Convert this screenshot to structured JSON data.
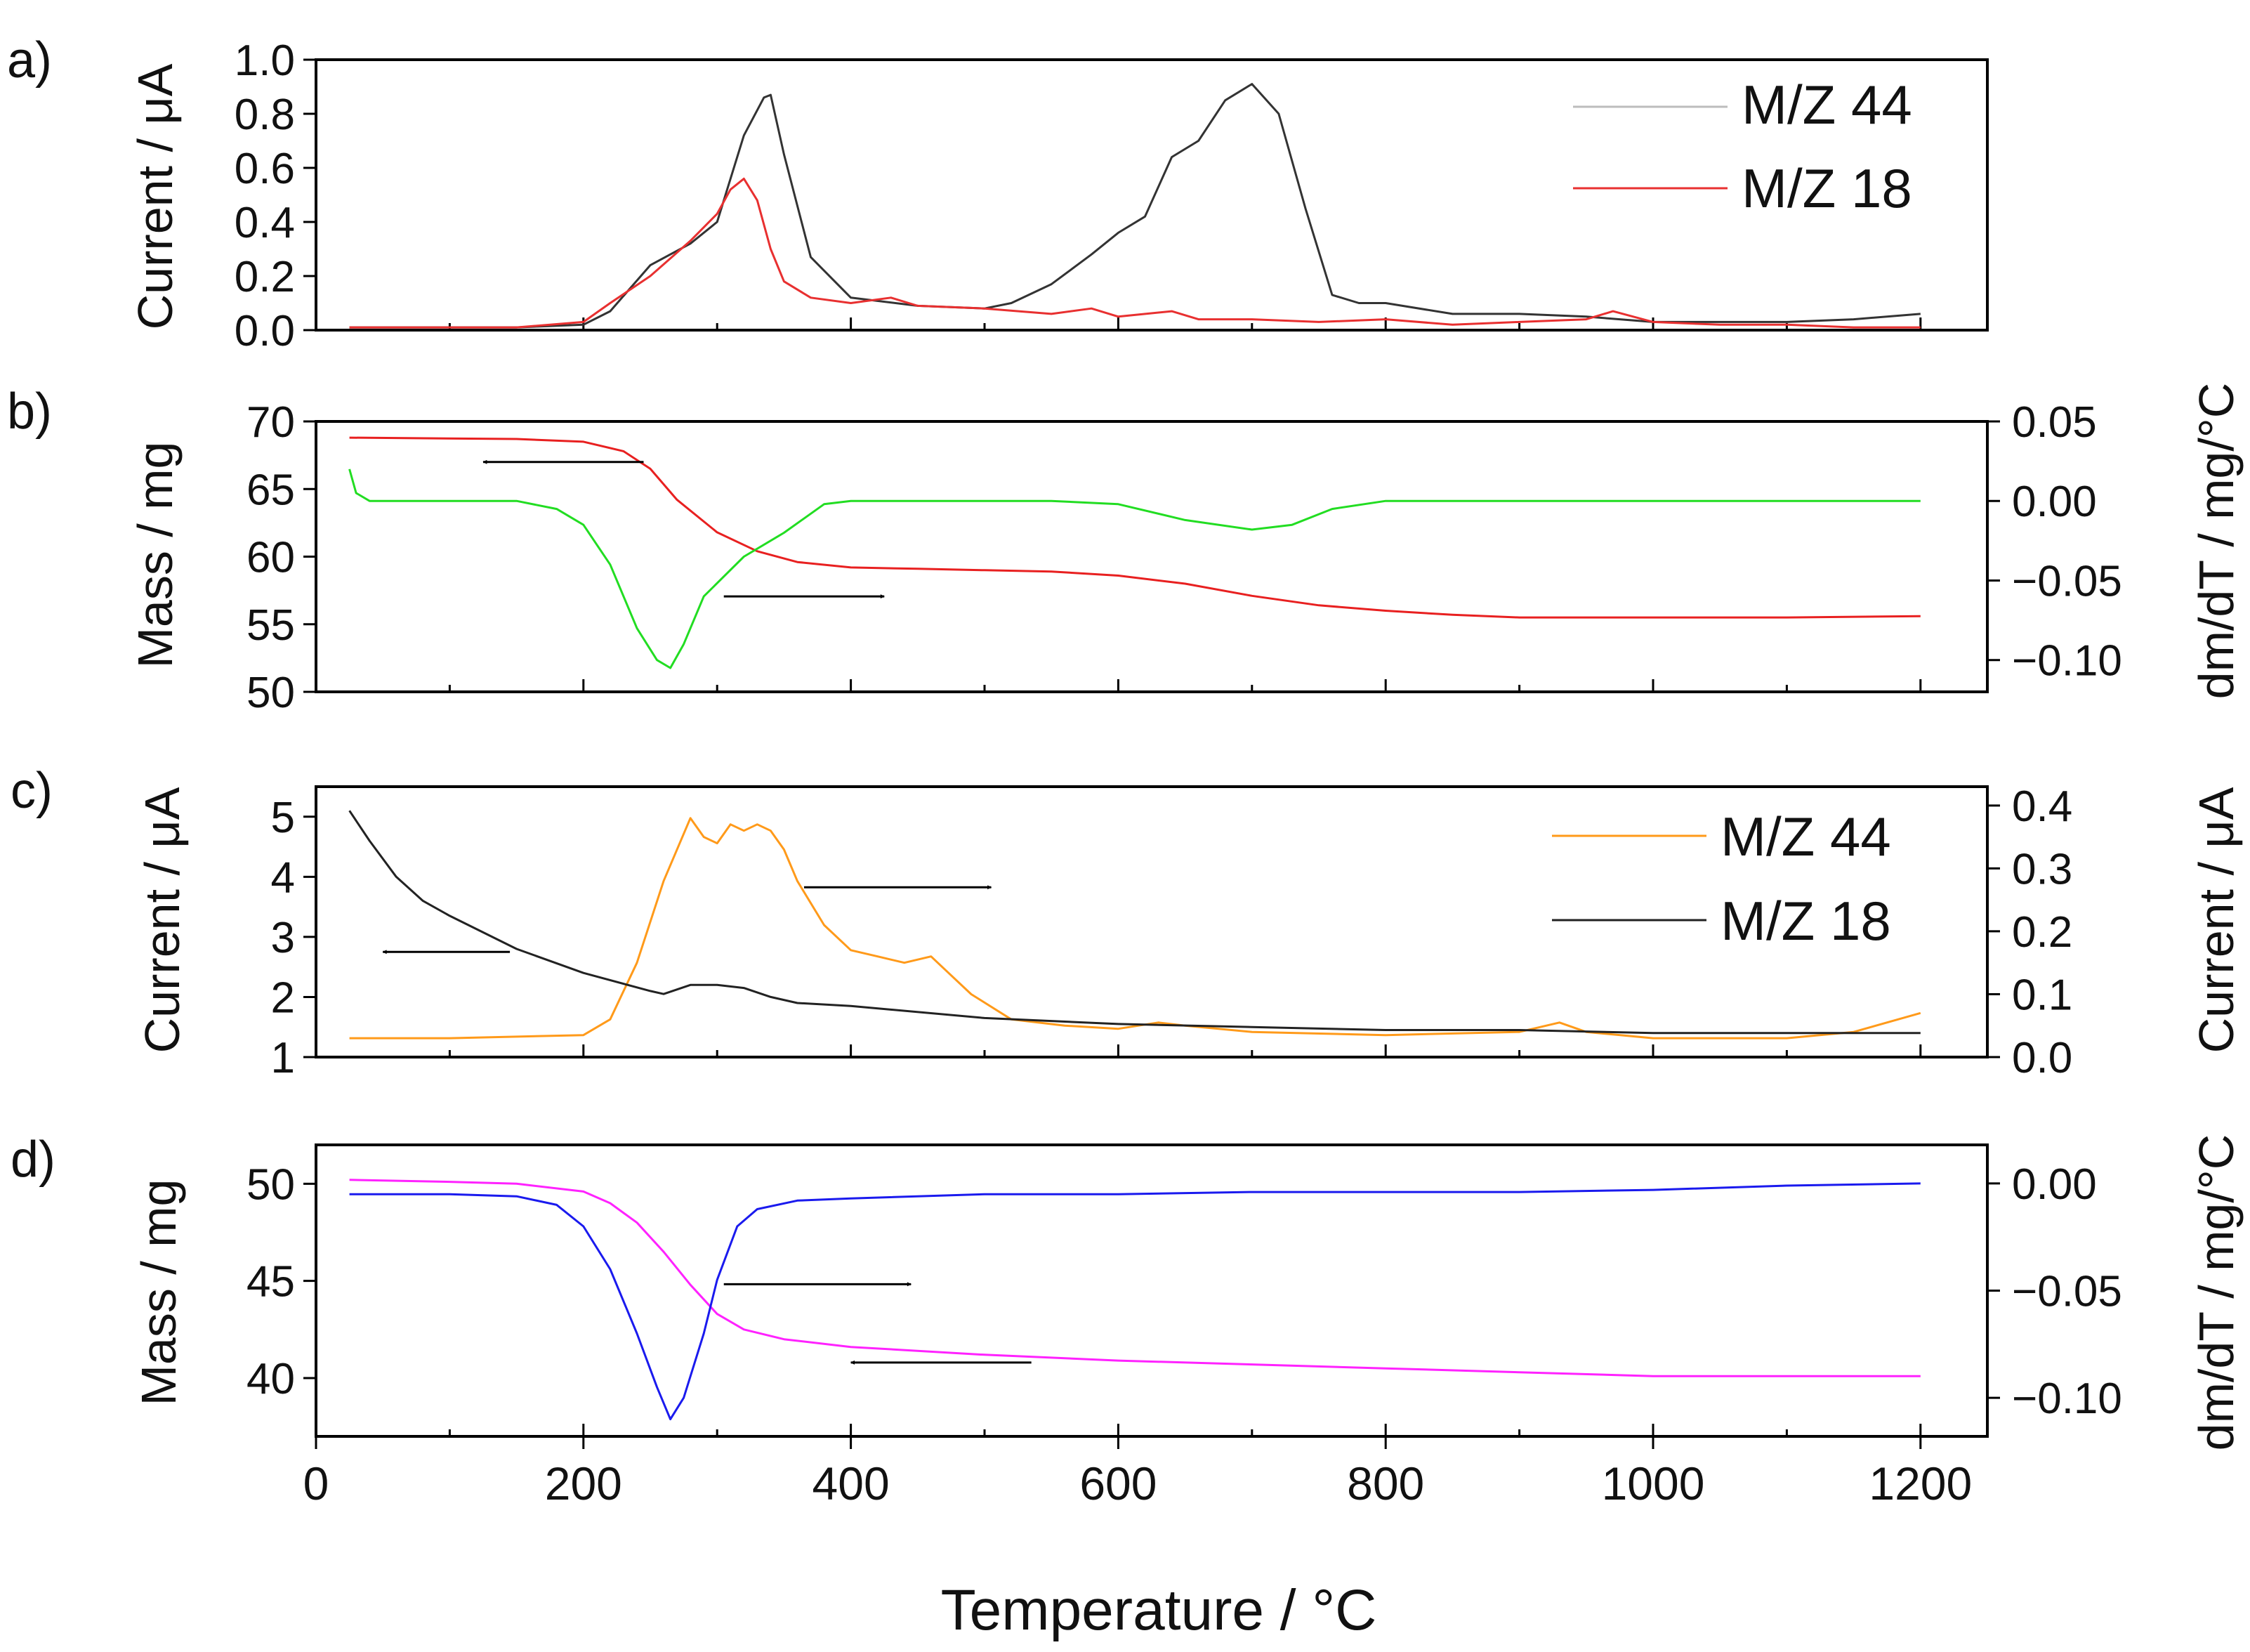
{
  "chart_data": [
    {
      "panel_label": "a)",
      "type": "line",
      "xlim": [
        0,
        1250
      ],
      "ylabel": "Current / μA",
      "ylim": [
        0,
        1.0
      ],
      "yticks": [
        0.0,
        0.2,
        0.4,
        0.6,
        0.8,
        1.0
      ],
      "ytick_labels": [
        "0.0",
        "0.2",
        "0.4",
        "0.6",
        "0.8",
        "1.0"
      ],
      "legend": "top-right",
      "series": [
        {
          "name": "M/Z 44",
          "color": "#333333",
          "axis": "left",
          "x": [
            25,
            100,
            150,
            200,
            220,
            250,
            280,
            300,
            320,
            335,
            340,
            350,
            370,
            400,
            450,
            500,
            520,
            550,
            580,
            600,
            620,
            640,
            660,
            680,
            700,
            720,
            740,
            760,
            780,
            800,
            850,
            900,
            950,
            1000,
            1050,
            1100,
            1150,
            1200
          ],
          "y": [
            0.01,
            0.01,
            0.01,
            0.02,
            0.07,
            0.24,
            0.32,
            0.4,
            0.72,
            0.86,
            0.87,
            0.65,
            0.27,
            0.12,
            0.09,
            0.08,
            0.1,
            0.17,
            0.28,
            0.36,
            0.42,
            0.64,
            0.7,
            0.85,
            0.91,
            0.8,
            0.45,
            0.13,
            0.1,
            0.1,
            0.06,
            0.06,
            0.05,
            0.03,
            0.03,
            0.03,
            0.04,
            0.06
          ]
        },
        {
          "name": "M/Z 18",
          "color": "#e83030",
          "axis": "left",
          "x": [
            25,
            100,
            150,
            200,
            220,
            250,
            280,
            300,
            310,
            320,
            330,
            340,
            350,
            370,
            400,
            430,
            450,
            500,
            550,
            580,
            600,
            640,
            660,
            700,
            750,
            800,
            850,
            900,
            950,
            970,
            1000,
            1050,
            1100,
            1150,
            1200
          ],
          "y": [
            0.01,
            0.01,
            0.01,
            0.03,
            0.1,
            0.2,
            0.33,
            0.43,
            0.52,
            0.56,
            0.48,
            0.3,
            0.18,
            0.12,
            0.1,
            0.12,
            0.09,
            0.08,
            0.06,
            0.08,
            0.05,
            0.07,
            0.04,
            0.04,
            0.03,
            0.04,
            0.02,
            0.03,
            0.04,
            0.07,
            0.03,
            0.02,
            0.02,
            0.01,
            0.01
          ]
        }
      ]
    },
    {
      "panel_label": "b)",
      "type": "line",
      "xlim": [
        0,
        1250
      ],
      "ylabel": "Mass / mg",
      "ylim": [
        50,
        70
      ],
      "yticks": [
        50,
        55,
        60,
        65,
        70
      ],
      "ytick_labels": [
        "50",
        "55",
        "60",
        "65",
        "70"
      ],
      "y2label": "dm/dT / mg/°C",
      "y2lim": [
        -0.12,
        0.05
      ],
      "y2ticks": [
        0.05,
        0.0,
        -0.05,
        -0.1
      ],
      "y2tick_labels": [
        "0.05",
        "0.00",
        "−0.05",
        "−0.10"
      ],
      "series": [
        {
          "name": "Mass",
          "color": "#e82020",
          "axis": "left",
          "x": [
            25,
            150,
            200,
            230,
            250,
            270,
            300,
            330,
            360,
            400,
            450,
            500,
            550,
            600,
            650,
            700,
            750,
            800,
            850,
            900,
            1000,
            1100,
            1200
          ],
          "y": [
            68.8,
            68.7,
            68.5,
            67.8,
            66.5,
            64.2,
            61.8,
            60.4,
            59.6,
            59.2,
            59.1,
            59.0,
            58.9,
            58.6,
            58.0,
            57.1,
            56.4,
            56.0,
            55.7,
            55.5,
            55.5,
            55.5,
            55.6
          ]
        },
        {
          "name": "dm/dT",
          "color": "#22dd22",
          "axis": "right",
          "x": [
            25,
            30,
            40,
            100,
            150,
            180,
            200,
            220,
            240,
            255,
            265,
            275,
            290,
            320,
            350,
            380,
            400,
            500,
            550,
            600,
            650,
            700,
            730,
            760,
            800,
            900,
            1000,
            1100,
            1200
          ],
          "y": [
            0.02,
            0.005,
            0.0,
            0.0,
            0.0,
            -0.005,
            -0.015,
            -0.04,
            -0.08,
            -0.1,
            -0.105,
            -0.09,
            -0.06,
            -0.035,
            -0.02,
            -0.002,
            0.0,
            0.0,
            0.0,
            -0.002,
            -0.012,
            -0.018,
            -0.015,
            -0.005,
            0.0,
            0.0,
            0.0,
            0.0,
            0.0
          ]
        }
      ],
      "annotations": [
        {
          "type": "arrow",
          "from_x": 245,
          "to_x": 125,
          "y": 67.0,
          "axis": "left"
        },
        {
          "type": "arrow",
          "from_x": 305,
          "to_x": 425,
          "y": -0.06,
          "axis": "right"
        }
      ]
    },
    {
      "panel_label": "c)",
      "type": "line",
      "xlim": [
        0,
        1250
      ],
      "ylabel": "Current / μA",
      "ylim": [
        1,
        5.5
      ],
      "yticks": [
        1,
        2,
        3,
        4,
        5
      ],
      "ytick_labels": [
        "1",
        "2",
        "3",
        "4",
        "5"
      ],
      "y2label": "Current / μA",
      "y2lim": [
        0,
        0.43
      ],
      "y2ticks": [
        0.0,
        0.1,
        0.2,
        0.3,
        0.4
      ],
      "y2tick_labels": [
        "0.0",
        "0.1",
        "0.2",
        "0.3",
        "0.4"
      ],
      "legend": "top-right",
      "series": [
        {
          "name": "M/Z 44",
          "color": "#ff9a1a",
          "axis": "right",
          "x": [
            25,
            100,
            200,
            220,
            240,
            260,
            280,
            290,
            300,
            310,
            320,
            330,
            340,
            350,
            360,
            380,
            400,
            420,
            440,
            460,
            470,
            490,
            520,
            560,
            600,
            630,
            650,
            700,
            800,
            900,
            930,
            950,
            1000,
            1100,
            1150,
            1200
          ],
          "y": [
            0.03,
            0.03,
            0.035,
            0.06,
            0.15,
            0.28,
            0.38,
            0.35,
            0.34,
            0.37,
            0.36,
            0.37,
            0.36,
            0.33,
            0.28,
            0.21,
            0.17,
            0.16,
            0.15,
            0.16,
            0.14,
            0.1,
            0.06,
            0.05,
            0.045,
            0.055,
            0.05,
            0.04,
            0.035,
            0.04,
            0.055,
            0.04,
            0.03,
            0.03,
            0.04,
            0.07
          ]
        },
        {
          "name": "M/Z 18",
          "color": "#222222",
          "axis": "left",
          "x": [
            25,
            40,
            60,
            80,
            100,
            150,
            200,
            250,
            260,
            280,
            300,
            320,
            340,
            360,
            400,
            500,
            600,
            700,
            800,
            900,
            1000,
            1100,
            1200
          ],
          "y": [
            5.1,
            4.6,
            4.0,
            3.6,
            3.35,
            2.8,
            2.4,
            2.1,
            2.05,
            2.2,
            2.2,
            2.15,
            2.0,
            1.9,
            1.85,
            1.65,
            1.55,
            1.5,
            1.45,
            1.45,
            1.4,
            1.4,
            1.4
          ]
        }
      ],
      "annotations": [
        {
          "type": "arrow",
          "from_x": 145,
          "to_x": 50,
          "y": 2.75,
          "axis": "left"
        },
        {
          "type": "arrow",
          "from_x": 365,
          "to_x": 505,
          "y": 0.27,
          "axis": "right"
        }
      ]
    },
    {
      "panel_label": "d)",
      "type": "line",
      "xlim": [
        0,
        1250
      ],
      "ylabel": "Mass / mg",
      "ylim": [
        37,
        52
      ],
      "yticks": [
        40,
        45,
        50
      ],
      "ytick_labels": [
        "40",
        "45",
        "50"
      ],
      "y2label": "dm/dT / mg/°C",
      "y2lim": [
        -0.118,
        0.018
      ],
      "y2ticks": [
        0.0,
        -0.05,
        -0.1
      ],
      "y2tick_labels": [
        "0.00",
        "−0.05",
        "−0.10"
      ],
      "xlabel": "Temperature / °C",
      "xticks": [
        0,
        200,
        400,
        600,
        800,
        1000,
        1200
      ],
      "xtick_labels": [
        "0",
        "200",
        "400",
        "600",
        "800",
        "1000",
        "1200"
      ],
      "series": [
        {
          "name": "Mass",
          "color": "#ff22ff",
          "axis": "left",
          "x": [
            25,
            100,
            150,
            200,
            220,
            240,
            260,
            280,
            300,
            320,
            350,
            400,
            500,
            600,
            700,
            800,
            900,
            1000,
            1100,
            1200
          ],
          "y": [
            50.2,
            50.1,
            50.0,
            49.6,
            49.0,
            48.0,
            46.5,
            44.8,
            43.3,
            42.5,
            42.0,
            41.6,
            41.2,
            40.9,
            40.7,
            40.5,
            40.3,
            40.1,
            40.1,
            40.1
          ]
        },
        {
          "name": "dm/dT",
          "color": "#1a1aee",
          "axis": "right",
          "x": [
            25,
            100,
            150,
            180,
            200,
            220,
            240,
            255,
            265,
            275,
            290,
            300,
            315,
            330,
            360,
            400,
            500,
            600,
            700,
            800,
            900,
            1000,
            1100,
            1200
          ],
          "y": [
            -0.005,
            -0.005,
            -0.006,
            -0.01,
            -0.02,
            -0.04,
            -0.07,
            -0.095,
            -0.11,
            -0.1,
            -0.07,
            -0.045,
            -0.02,
            -0.012,
            -0.008,
            -0.007,
            -0.005,
            -0.005,
            -0.004,
            -0.004,
            -0.004,
            -0.003,
            -0.001,
            0.0
          ]
        }
      ],
      "annotations": [
        {
          "type": "arrow",
          "from_x": 305,
          "to_x": 445,
          "y": -0.047,
          "axis": "right"
        },
        {
          "type": "arrow",
          "from_x": 535,
          "to_x": 400,
          "y": 40.8,
          "axis": "left"
        }
      ]
    }
  ]
}
